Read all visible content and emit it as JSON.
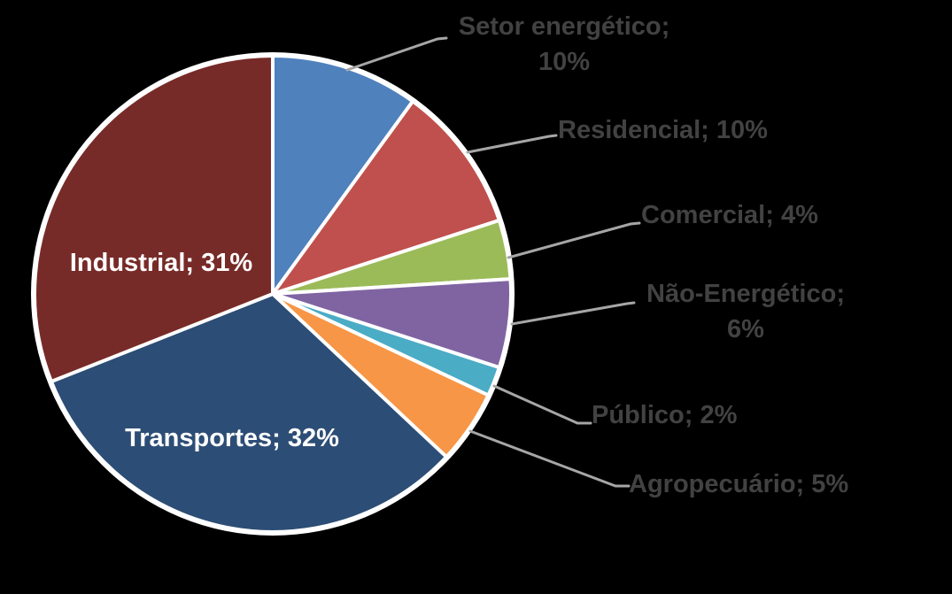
{
  "chart_data": {
    "type": "pie",
    "direction": "clockwise",
    "start_angle_deg": 0,
    "background": "#000000",
    "slice_border_color": "#FFFFFF",
    "leader_line_color": "#A6A6A6",
    "outside_label_color": "#424242",
    "inside_label_color": "#FFFFFF",
    "slices": [
      {
        "name": "Setor energético",
        "value": 10,
        "color": "#4F81BD",
        "label": "Setor energético;\n10%",
        "label_placement": "outside"
      },
      {
        "name": "Residencial",
        "value": 10,
        "color": "#C0504D",
        "label": "Residencial; 10%",
        "label_placement": "outside"
      },
      {
        "name": "Comercial",
        "value": 4,
        "color": "#9BBB59",
        "label": "Comercial; 4%",
        "label_placement": "outside"
      },
      {
        "name": "Não-Energético",
        "value": 6,
        "color": "#8064A2",
        "label": "Não-Energético;\n6%",
        "label_placement": "outside"
      },
      {
        "name": "Público",
        "value": 2,
        "color": "#4BACC6",
        "label": "Público; 2%",
        "label_placement": "outside"
      },
      {
        "name": "Agropecuário",
        "value": 5,
        "color": "#F79646",
        "label": "Agropecuário; 5%",
        "label_placement": "outside"
      },
      {
        "name": "Transportes",
        "value": 32,
        "color": "#2C4D75",
        "label": "Transportes; 32%",
        "label_placement": "inside"
      },
      {
        "name": "Industrial",
        "value": 31,
        "color": "#772B28",
        "label": "Industrial; 31%",
        "label_placement": "inside"
      }
    ]
  }
}
